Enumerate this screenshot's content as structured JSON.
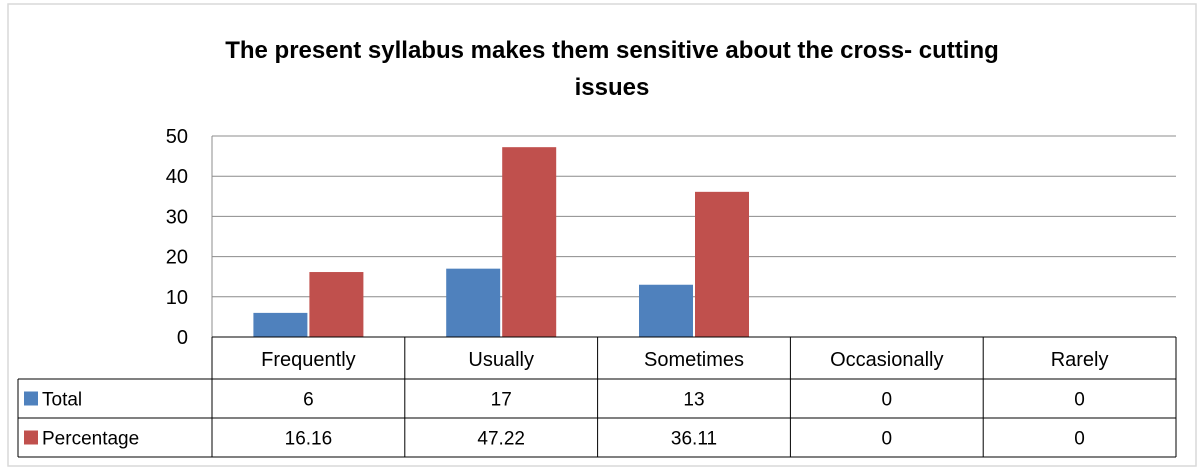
{
  "chart_data": {
    "type": "bar",
    "title_lines": [
      "The present syllabus makes them sensitive about the cross- cutting",
      "issues"
    ],
    "categories": [
      "Frequently",
      "Usually",
      "Sometimes",
      "Occasionally",
      "Rarely"
    ],
    "series": [
      {
        "name": "Total",
        "values": [
          6,
          17,
          13,
          0,
          0
        ],
        "labels": [
          "6",
          "17",
          "13",
          "0",
          "0"
        ],
        "color": "#4f81bd"
      },
      {
        "name": "Percentage",
        "values": [
          16.16,
          47.22,
          36.11,
          0,
          0
        ],
        "labels": [
          "16.16",
          "47.22",
          "36.11",
          "0",
          "0"
        ],
        "color": "#c0504d"
      }
    ],
    "ylim": [
      0,
      50
    ],
    "yticks": [
      0,
      10,
      20,
      30,
      40,
      50
    ],
    "grid": true,
    "legend": "data-table"
  }
}
